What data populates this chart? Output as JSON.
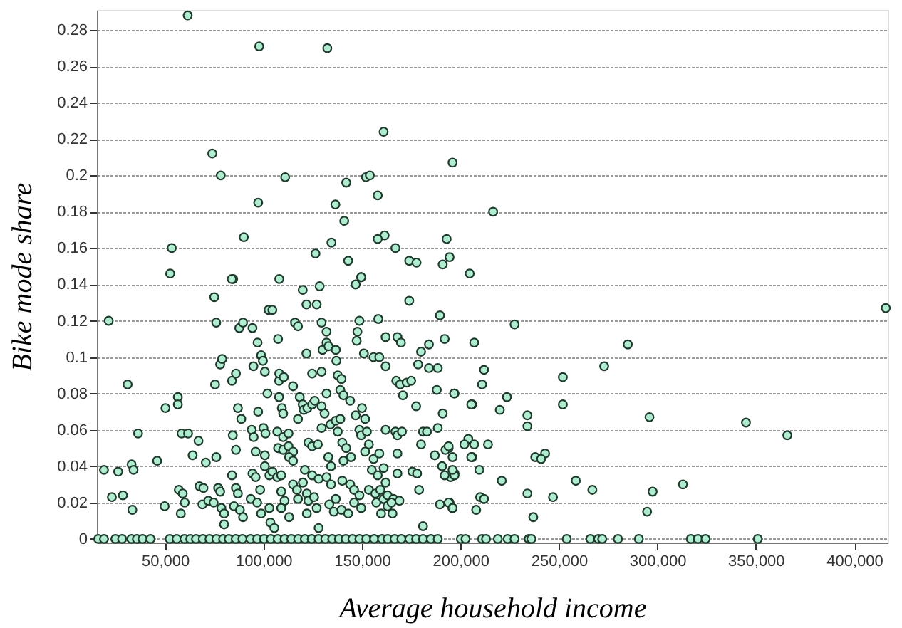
{
  "chart_data": {
    "type": "scatter",
    "xlabel": "Average household income",
    "ylabel": "Bike mode share",
    "xlim": [
      15400,
      417000
    ],
    "ylim": [
      -0.002,
      0.291
    ],
    "xticks": [
      {
        "value": 50000,
        "label": "50,000"
      },
      {
        "value": 100000,
        "label": "100,000"
      },
      {
        "value": 150000,
        "label": "150,000"
      },
      {
        "value": 200000,
        "label": "200,000"
      },
      {
        "value": 250000,
        "label": "250,000"
      },
      {
        "value": 300000,
        "label": "300,000"
      },
      {
        "value": 350000,
        "label": "350,000"
      },
      {
        "value": 400000,
        "label": "400,000"
      }
    ],
    "yticks": [
      0,
      0.02,
      0.04,
      0.06,
      0.08,
      0.1,
      0.12,
      0.14,
      0.16,
      0.18,
      0.2,
      0.22,
      0.24,
      0.26,
      0.28
    ],
    "grid": "y",
    "marker": "circle",
    "legend": false,
    "series": [
      {
        "color": "#b0ecd0",
        "x": [
          61500,
          97800,
          132400,
          161000,
          74000,
          78300,
          97300,
          111000,
          152000,
          154000,
          196000,
          142000,
          158000,
          136500,
          141000,
          90000,
          161500,
          158000,
          134500,
          53400,
          126400,
          167000,
          193000,
          194500,
          191000,
          143000,
          174000,
          177700,
          52600,
          84600,
          108000,
          149600,
          204700,
          216600,
          227500,
          207000,
          285000,
          273000,
          212000,
          211000,
          252000,
          197000,
          223600,
          206000,
          220000,
          252000,
          234000,
          234000,
          296000,
          345000,
          366000,
          204000,
          202000,
          207000,
          214000,
          194000,
          196000,
          206000,
          243000,
          238000,
          241000,
          197000,
          195000,
          209600,
          221000,
          258600,
          234000,
          267000,
          297600,
          313000,
          210000,
          212000,
          247000,
          194500,
          196000,
          208000,
          237000,
          294800,
          416000,
          21400,
          19000,
          23000,
          26200,
          28600,
          31000,
          33000,
          34000,
          33400,
          36300,
          46000,
          49800,
          50200,
          56500,
          56500,
          58400,
          61700,
          57000,
          59000,
          58000,
          60000,
          64000,
          67000,
          67500,
          69500,
          70700,
          69000,
          72000,
          75000,
          76000,
          75400,
          76000,
          77000,
          78000,
          78000,
          79000,
          74700,
          78600,
          80000,
          80000,
          83900,
          84000,
          84400,
          86000,
          87000,
          88700,
          86000,
          84000,
          86000,
          87000,
          85000,
          88000,
          89600,
          87700,
          89600,
          94400,
          94000,
          95000,
          96000,
          94900,
          97000,
          98800,
          99700,
          100700,
          97300,
          94400,
          96000,
          98300,
          93500,
          96800,
          98800,
          103000,
          100000,
          101000,
          100700,
          100700,
          102600,
          104500,
          102000,
          103000,
          104500,
          107000,
          109000,
          103500,
          105500,
          107400,
          107900,
          107900,
          109300,
          110000,
          107000,
          110000,
          112700,
          107400,
          110000,
          112700,
          115000,
          108000,
          110300,
          113000,
          115000,
          109000,
          110700,
          109000,
          113000,
          115000,
          116000,
          117500,
          118400,
          119900,
          120400,
          117500,
          119900,
          121800,
          127000,
          121800,
          124700,
          122300,
          124700,
          126000,
          122800,
          124700,
          127600,
          115000,
          117000,
          120000,
          122000,
          117500,
          122800,
          125700,
          121000,
          124700,
          128000,
          122000,
          127000,
          128000,
          128500,
          129500,
          132000,
          130000,
          132000,
          133000,
          129500,
          129500,
          134000,
          129500,
          131000,
          132000,
          132900,
          134300,
          132000,
          134300,
          136700,
          133400,
          135700,
          136700,
          137000,
          137700,
          139600,
          139000,
          140600,
          144000,
          136700,
          139000,
          137700,
          140000,
          142000,
          140600,
          144400,
          140000,
          144000,
          146000,
          148700,
          139600,
          143000,
          146000,
          149600,
          146800,
          149600,
          148700,
          147700,
          147300,
          151000,
          155900,
          146800,
          150000,
          151600,
          148700,
          149600,
          152500,
          153500,
          151600,
          155900,
          158800,
          155000,
          158000,
          153500,
          156800,
          159300,
          157300,
          161000,
          163000,
          158300,
          162000,
          168000,
          169800,
          158800,
          162000,
          167400,
          169400,
          172700,
          175000,
          170800,
          162000,
          167000,
          168000,
          170300,
          168000,
          161000,
          168000,
          162000,
          163000,
          166000,
          169000,
          165000,
          165500,
          159700,
          174000,
          178500,
          180000,
          177500,
          181000,
          180000,
          175600,
          178000,
          179000,
          181000,
          184000,
          189600,
          192000,
          184000,
          188500,
          183000,
          188500,
          191000,
          188000,
          187000,
          192400,
          194000,
          190700,
          192000,
          197000,
          196000,
          189600,
          194000,
          196000,
          196800,
          205500,
          205500,
          16100,
          19000,
          24800,
          28200,
          32900,
          35700,
          38600,
          42600,
          52400,
          55900,
          59900,
          62800,
          65700,
          69200,
          72600,
          76100,
          79500,
          82400,
          85900,
          89300,
          93400,
          96800,
          100300,
          103700,
          107200,
          110700,
          114100,
          117600,
          121000,
          124500,
          128000,
          131400,
          134900,
          138300,
          141800,
          145200,
          148700,
          152200,
          156200,
          160200,
          163100,
          166600,
          170000,
          174100,
          177500,
          181000,
          185000,
          188500,
          200200,
          202600,
          211000,
          213000,
          219000,
          224000,
          227500,
          234700,
          236000,
          254000,
          266000,
          270000,
          272000,
          280000,
          290600,
          317000,
          320600,
          324500,
          351000
        ],
        "values": [
          0.288,
          0.271,
          0.27,
          0.224,
          0.212,
          0.2,
          0.185,
          0.199,
          0.199,
          0.2,
          0.207,
          0.196,
          0.189,
          0.184,
          0.175,
          0.166,
          0.167,
          0.165,
          0.163,
          0.16,
          0.157,
          0.16,
          0.165,
          0.155,
          0.151,
          0.153,
          0.153,
          0.152,
          0.146,
          0.143,
          0.143,
          0.144,
          0.146,
          0.18,
          0.118,
          0.108,
          0.107,
          0.095,
          0.093,
          0.085,
          0.089,
          0.08,
          0.078,
          0.074,
          0.071,
          0.074,
          0.068,
          0.062,
          0.067,
          0.064,
          0.057,
          0.055,
          0.052,
          0.052,
          0.052,
          0.05,
          0.045,
          0.045,
          0.047,
          0.045,
          0.044,
          0.036,
          0.034,
          0.038,
          0.032,
          0.032,
          0.025,
          0.027,
          0.026,
          0.03,
          0.023,
          0.022,
          0.023,
          0.02,
          0.017,
          0.016,
          0.012,
          0.015,
          0.127,
          0.12,
          0.038,
          0.023,
          0.037,
          0.024,
          0.085,
          0.041,
          0.038,
          0.016,
          0.058,
          0.043,
          0.018,
          0.072,
          0.078,
          0.074,
          0.058,
          0.058,
          0.027,
          0.025,
          0.014,
          0.02,
          0.046,
          0.054,
          0.029,
          0.028,
          0.042,
          0.019,
          0.021,
          0.133,
          0.119,
          0.085,
          0.045,
          0.028,
          0.026,
          0.096,
          0.099,
          0.02,
          0.017,
          0.014,
          0.008,
          0.143,
          0.087,
          0.057,
          0.049,
          0.072,
          0.066,
          0.091,
          0.035,
          0.028,
          0.025,
          0.018,
          0.016,
          0.012,
          0.116,
          0.119,
          0.116,
          0.06,
          0.056,
          0.048,
          0.095,
          0.108,
          0.101,
          0.098,
          0.092,
          0.07,
          0.036,
          0.034,
          0.027,
          0.022,
          0.02,
          0.014,
          0.017,
          0.061,
          0.058,
          0.046,
          0.04,
          0.126,
          0.126,
          0.08,
          0.035,
          0.037,
          0.034,
          0.035,
          0.009,
          0.006,
          0.11,
          0.087,
          0.078,
          0.072,
          0.069,
          0.059,
          0.056,
          0.058,
          0.05,
          0.049,
          0.051,
          0.048,
          0.091,
          0.089,
          0.045,
          0.043,
          0.026,
          0.021,
          0.017,
          0.012,
          0.084,
          0.119,
          0.117,
          0.078,
          0.074,
          0.071,
          0.066,
          0.137,
          0.129,
          0.129,
          0.102,
          0.091,
          0.072,
          0.074,
          0.076,
          0.053,
          0.051,
          0.052,
          0.03,
          0.027,
          0.031,
          0.025,
          0.022,
          0.021,
          0.023,
          0.038,
          0.035,
          0.033,
          0.014,
          0.017,
          0.006,
          0.139,
          0.119,
          0.114,
          0.104,
          0.108,
          0.106,
          0.092,
          0.061,
          0.063,
          0.073,
          0.069,
          0.08,
          0.045,
          0.04,
          0.034,
          0.03,
          0.022,
          0.019,
          0.015,
          0.104,
          0.098,
          0.09,
          0.088,
          0.082,
          0.079,
          0.076,
          0.065,
          0.066,
          0.059,
          0.053,
          0.05,
          0.043,
          0.045,
          0.032,
          0.03,
          0.027,
          0.024,
          0.016,
          0.014,
          0.02,
          0.017,
          0.14,
          0.144,
          0.12,
          0.114,
          0.109,
          0.102,
          0.1,
          0.068,
          0.072,
          0.066,
          0.06,
          0.057,
          0.059,
          0.052,
          0.048,
          0.044,
          0.047,
          0.038,
          0.035,
          0.027,
          0.025,
          0.027,
          0.02,
          0.022,
          0.018,
          0.121,
          0.111,
          0.111,
          0.108,
          0.1,
          0.095,
          0.087,
          0.085,
          0.086,
          0.087,
          0.079,
          0.06,
          0.059,
          0.057,
          0.059,
          0.047,
          0.039,
          0.036,
          0.031,
          0.024,
          0.022,
          0.021,
          0.02,
          0.014,
          0.014,
          0.131,
          0.096,
          0.103,
          0.073,
          0.059,
          0.052,
          0.037,
          0.036,
          0.027,
          0.007,
          0.107,
          0.123,
          0.11,
          0.094,
          0.094,
          0.059,
          0.061,
          0.069,
          0.082,
          0.046,
          0.049,
          0.051,
          0.04,
          0.035,
          0.035,
          0.038,
          0.019,
          0.02,
          0.017,
          0.08,
          0.074,
          0.045,
          0,
          0,
          0,
          0,
          0,
          0,
          0,
          0,
          0,
          0,
          0,
          0,
          0,
          0,
          0,
          0,
          0,
          0,
          0,
          0,
          0,
          0,
          0,
          0,
          0,
          0,
          0,
          0,
          0,
          0,
          0,
          0,
          0,
          0,
          0,
          0,
          0,
          0,
          0,
          0,
          0,
          0,
          0,
          0,
          0,
          0,
          0,
          0,
          0,
          0,
          0,
          0,
          0,
          0,
          0,
          0,
          0,
          0,
          0,
          0,
          0,
          0,
          0,
          0,
          0,
          0,
          0
        ]
      }
    ]
  }
}
